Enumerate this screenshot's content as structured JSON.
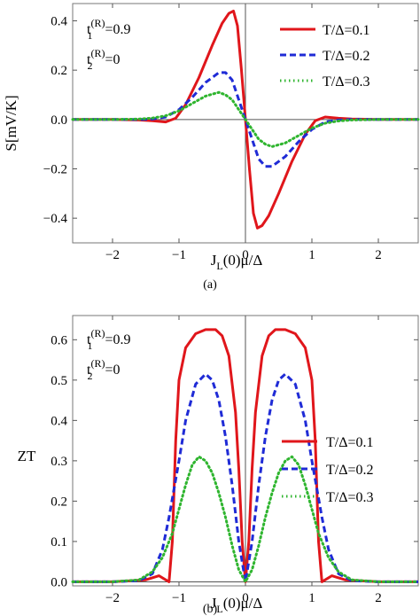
{
  "chart_data": [
    {
      "type": "line",
      "panel": "(a)",
      "caption": "(a)",
      "xlabel": "J_L(0)μ/Δ",
      "ylabel": "S[mV/K]",
      "xlim": [
        -2.6,
        2.6
      ],
      "ylim": [
        -0.5,
        0.47
      ],
      "xticks": [
        -2,
        -1,
        0,
        1,
        2
      ],
      "xtick_labels": [
        "−2",
        "−1",
        "0",
        "1",
        "2"
      ],
      "yticks": [
        -0.4,
        -0.2,
        0.0,
        0.2,
        0.4
      ],
      "ytick_labels": [
        "−0.4",
        "−0.2",
        "0.0",
        "0.2",
        "0.4"
      ],
      "legend_position": "top-right",
      "annotations": [
        {
          "base": "t",
          "sub": "1",
          "sup": "(R)",
          "rest": "=0.9"
        },
        {
          "base": "t",
          "sub": "2",
          "sup": "(R)",
          "rest": "=0"
        }
      ],
      "series": [
        {
          "name": "T/Δ=0.1",
          "color": "#e0161b",
          "style": "solid",
          "x": [
            -2.6,
            -2.0,
            -1.6,
            -1.4,
            -1.2,
            -1.05,
            -0.9,
            -0.7,
            -0.5,
            -0.35,
            -0.25,
            -0.18,
            -0.12,
            -0.06,
            0.0,
            0.06,
            0.12,
            0.18,
            0.25,
            0.35,
            0.5,
            0.7,
            0.9,
            1.05,
            1.2,
            1.4,
            1.6,
            2.0,
            2.6
          ],
          "y": [
            0.0,
            0.0,
            -0.002,
            -0.005,
            -0.01,
            0.005,
            0.06,
            0.17,
            0.3,
            0.39,
            0.43,
            0.44,
            0.38,
            0.2,
            0.0,
            -0.2,
            -0.38,
            -0.44,
            -0.43,
            -0.39,
            -0.3,
            -0.17,
            -0.06,
            -0.005,
            0.01,
            0.005,
            0.002,
            0.0,
            0.0
          ]
        },
        {
          "name": "T/Δ=0.2",
          "color": "#1f2bd6",
          "style": "dashed",
          "x": [
            -2.6,
            -2.0,
            -1.6,
            -1.4,
            -1.2,
            -1.0,
            -0.8,
            -0.6,
            -0.4,
            -0.3,
            -0.2,
            -0.1,
            0.0,
            0.1,
            0.2,
            0.3,
            0.4,
            0.6,
            0.8,
            1.0,
            1.2,
            1.4,
            1.6,
            2.0,
            2.6
          ],
          "y": [
            0.0,
            0.0,
            0.0,
            0.002,
            0.01,
            0.04,
            0.09,
            0.15,
            0.19,
            0.19,
            0.16,
            0.08,
            0.0,
            -0.08,
            -0.16,
            -0.19,
            -0.19,
            -0.15,
            -0.09,
            -0.04,
            -0.01,
            -0.002,
            0.0,
            0.0,
            0.0
          ]
        },
        {
          "name": "T/Δ=0.3",
          "color": "#2fb52f",
          "style": "dotted",
          "x": [
            -2.6,
            -2.0,
            -1.6,
            -1.4,
            -1.2,
            -1.0,
            -0.8,
            -0.6,
            -0.4,
            -0.3,
            -0.2,
            -0.1,
            0.0,
            0.1,
            0.2,
            0.3,
            0.4,
            0.6,
            0.8,
            1.0,
            1.2,
            1.4,
            1.6,
            2.0,
            2.6
          ],
          "y": [
            0.0,
            0.0,
            0.002,
            0.006,
            0.015,
            0.035,
            0.065,
            0.095,
            0.11,
            0.1,
            0.08,
            0.04,
            0.0,
            -0.04,
            -0.08,
            -0.1,
            -0.11,
            -0.095,
            -0.065,
            -0.035,
            -0.015,
            -0.006,
            -0.002,
            0.0,
            0.0
          ]
        }
      ]
    },
    {
      "type": "line",
      "panel": "(b)",
      "caption": "(b)",
      "xlabel": "J_L(0)μ/Δ",
      "ylabel": "ZT",
      "xlim": [
        -2.6,
        2.6
      ],
      "ylim": [
        -0.01,
        0.66
      ],
      "xticks": [
        -2,
        -1,
        0,
        1,
        2
      ],
      "xtick_labels": [
        "−2",
        "−1",
        "0",
        "1",
        "2"
      ],
      "yticks": [
        0.0,
        0.1,
        0.2,
        0.3,
        0.4,
        0.5,
        0.6
      ],
      "ytick_labels": [
        "0.0",
        "0.1",
        "0.2",
        "0.3",
        "0.4",
        "0.5",
        "0.6"
      ],
      "legend_position": "right",
      "annotations": [
        {
          "base": "t",
          "sub": "1",
          "sup": "(R)",
          "rest": "=0.9"
        },
        {
          "base": "t",
          "sub": "2",
          "sup": "(R)",
          "rest": "=0"
        }
      ],
      "series": [
        {
          "name": "T/Δ=0.1",
          "color": "#e0161b",
          "style": "solid",
          "x": [
            -2.6,
            -2.0,
            -1.5,
            -1.3,
            -1.2,
            -1.15,
            -1.1,
            -1.05,
            -1.0,
            -0.9,
            -0.75,
            -0.6,
            -0.45,
            -0.35,
            -0.25,
            -0.15,
            -0.1,
            -0.05,
            0.0,
            0.05,
            0.1,
            0.15,
            0.25,
            0.35,
            0.45,
            0.6,
            0.75,
            0.9,
            1.0,
            1.05,
            1.1,
            1.15,
            1.2,
            1.3,
            1.5,
            2.0,
            2.6
          ],
          "y": [
            0.0,
            0.0,
            0.005,
            0.015,
            0.005,
            0.0,
            0.1,
            0.35,
            0.5,
            0.58,
            0.615,
            0.625,
            0.625,
            0.61,
            0.56,
            0.42,
            0.28,
            0.1,
            0.0,
            0.1,
            0.28,
            0.42,
            0.56,
            0.61,
            0.625,
            0.625,
            0.615,
            0.58,
            0.5,
            0.35,
            0.1,
            0.0,
            0.005,
            0.015,
            0.005,
            0.0,
            0.0
          ]
        },
        {
          "name": "T/Δ=0.2",
          "color": "#1f2bd6",
          "style": "dashed",
          "x": [
            -2.6,
            -2.0,
            -1.6,
            -1.4,
            -1.25,
            -1.15,
            -1.0,
            -0.9,
            -0.75,
            -0.6,
            -0.5,
            -0.4,
            -0.3,
            -0.2,
            -0.1,
            0.0,
            0.1,
            0.2,
            0.3,
            0.4,
            0.5,
            0.6,
            0.75,
            0.9,
            1.0,
            1.15,
            1.25,
            1.4,
            1.6,
            2.0,
            2.6
          ],
          "y": [
            0.0,
            0.0,
            0.003,
            0.02,
            0.08,
            0.16,
            0.3,
            0.4,
            0.49,
            0.515,
            0.5,
            0.45,
            0.36,
            0.24,
            0.1,
            0.0,
            0.1,
            0.24,
            0.36,
            0.45,
            0.5,
            0.515,
            0.49,
            0.4,
            0.3,
            0.16,
            0.08,
            0.02,
            0.003,
            0.0,
            0.0
          ]
        },
        {
          "name": "T/Δ=0.3",
          "color": "#2fb52f",
          "style": "dotted",
          "x": [
            -2.6,
            -2.0,
            -1.6,
            -1.4,
            -1.25,
            -1.1,
            -1.0,
            -0.9,
            -0.8,
            -0.7,
            -0.6,
            -0.5,
            -0.4,
            -0.3,
            -0.2,
            -0.1,
            0.0,
            0.1,
            0.2,
            0.3,
            0.4,
            0.5,
            0.6,
            0.7,
            0.8,
            0.9,
            1.0,
            1.1,
            1.25,
            1.4,
            1.6,
            2.0,
            2.6
          ],
          "y": [
            0.0,
            0.0,
            0.005,
            0.025,
            0.06,
            0.12,
            0.18,
            0.24,
            0.29,
            0.31,
            0.3,
            0.27,
            0.22,
            0.16,
            0.09,
            0.03,
            0.0,
            0.03,
            0.09,
            0.16,
            0.22,
            0.27,
            0.3,
            0.31,
            0.29,
            0.24,
            0.18,
            0.12,
            0.06,
            0.025,
            0.005,
            0.0,
            0.0
          ]
        }
      ]
    }
  ]
}
